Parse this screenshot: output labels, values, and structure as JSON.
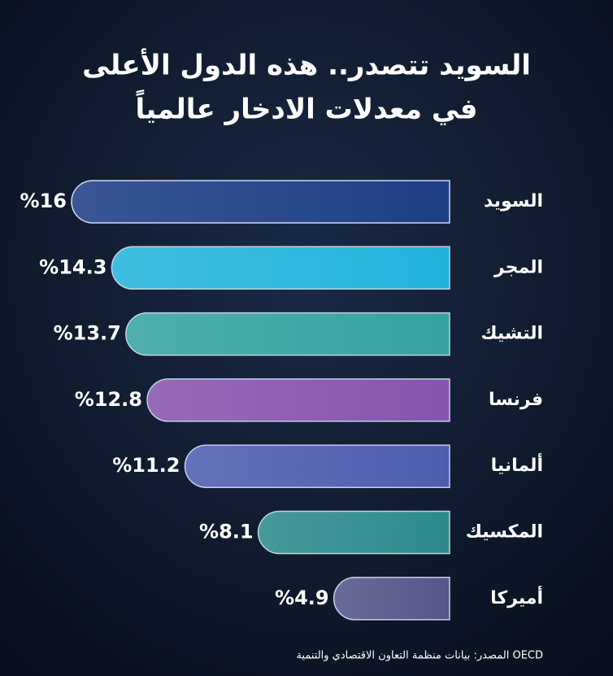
{
  "chart_data": {
    "type": "bar",
    "orientation": "horizontal",
    "title": [
      "السويد تتصدر.. هذه الدول الأعلى",
      "في معدلات الادخار عالمياً"
    ],
    "categories": [
      "السويد",
      "المجر",
      "التشيك",
      "فرنسا",
      "ألمانيا",
      "المكسيك",
      "أميركا"
    ],
    "values": [
      16,
      14.3,
      13.7,
      12.8,
      11.2,
      8.1,
      4.9
    ],
    "value_labels": [
      "%16",
      "%14.3",
      "%13.7",
      "%12.8",
      "%11.2",
      "%8.1",
      "%4.9"
    ],
    "colors": [
      "#1d3f86",
      "#22b4dc",
      "#35a39f",
      "#8755ae",
      "#4f5db0",
      "#2d8a8c",
      "#56568a"
    ],
    "highlight_color": "#f2d23a",
    "source": "المصدر: بيانات منظمة التعاون الاقتصادي والتنمية OECD"
  }
}
